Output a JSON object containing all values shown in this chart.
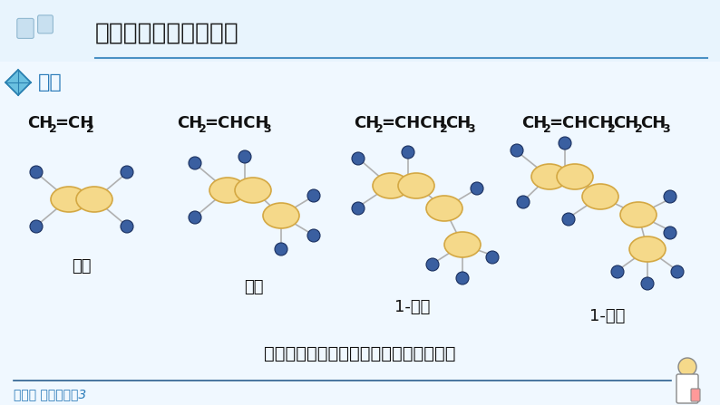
{
  "bg_color": "#f0f8ff",
  "title": "一、烯烃的结构与性质",
  "subtitle": "烯烃",
  "bottom_text": "人教版 选择性必䗮3",
  "caption": "几种简单烯烃的结构简式和分子结构模型",
  "carbon_color": "#f5d98a",
  "carbon_edge": "#d4a843",
  "hydrogen_color": "#3a5fa0",
  "bond_color": "#b0b0b0",
  "header_color": "#e8f4fd",
  "title_line_color": "#4a90c4",
  "subtitle_color": "#2a7ab8",
  "bottom_line_color": "#2a5f8f"
}
